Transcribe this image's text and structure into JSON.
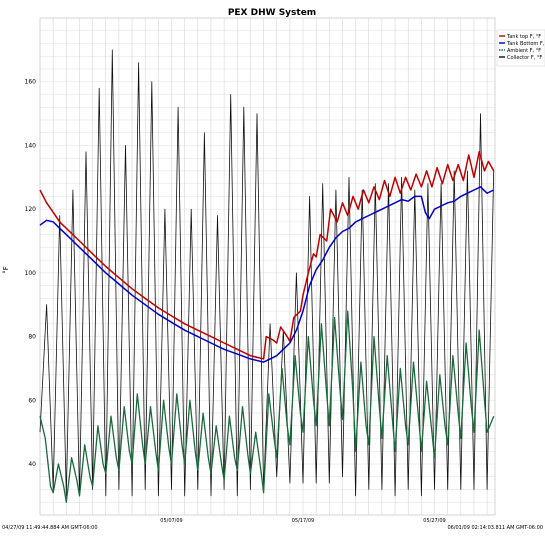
{
  "chart_data": {
    "type": "line",
    "title": "PEX DHW System",
    "xlabel": "",
    "ylabel": "°F",
    "ylim": [
      24,
      180
    ],
    "y_ticks": [
      40,
      60,
      80,
      100,
      120,
      140,
      160
    ],
    "y_tick_labels": [
      "40",
      "60",
      "80",
      "100",
      "120",
      "140",
      "160"
    ],
    "x_range": [
      "04/27/09 11:49:44.884 AM",
      "06/01/09 02:14:03.811 AM"
    ],
    "x_tick_labels": [
      {
        "label": "05/07/09",
        "day": 10
      },
      {
        "label": "05/17/09",
        "day": 20
      },
      {
        "label": "05/27/09",
        "day": 30
      }
    ],
    "x_start_label": "04/27/09 11:49:44.884 AM GMT-06:00",
    "x_end_label": "06/01/09 02:14:03.811 AM GMT-06:00",
    "grid": true,
    "legend_position": "top-right",
    "series": [
      {
        "name": "Tank top F, °F",
        "color": "#c00000",
        "points": [
          [
            0,
            126
          ],
          [
            0.5,
            122
          ],
          [
            1,
            119
          ],
          [
            1.5,
            116
          ],
          [
            2,
            114
          ],
          [
            3,
            110
          ],
          [
            4,
            106
          ],
          [
            5,
            102
          ],
          [
            6,
            98.5
          ],
          [
            7,
            95
          ],
          [
            8,
            92
          ],
          [
            9,
            89
          ],
          [
            10,
            86.5
          ],
          [
            11,
            84
          ],
          [
            12,
            82
          ],
          [
            13,
            80
          ],
          [
            14,
            78
          ],
          [
            15,
            76
          ],
          [
            16,
            74
          ],
          [
            17,
            73
          ],
          [
            17.2,
            80
          ],
          [
            17.7,
            79
          ],
          [
            18,
            78
          ],
          [
            18.3,
            83
          ],
          [
            18.8,
            80
          ],
          [
            19,
            78.5
          ],
          [
            19.3,
            86
          ],
          [
            19.8,
            88
          ],
          [
            20,
            93
          ],
          [
            20.4,
            100
          ],
          [
            20.8,
            106
          ],
          [
            21,
            105
          ],
          [
            21.3,
            112
          ],
          [
            21.8,
            110
          ],
          [
            22.1,
            120
          ],
          [
            22.6,
            116
          ],
          [
            23,
            122
          ],
          [
            23.4,
            118
          ],
          [
            23.8,
            124
          ],
          [
            24.2,
            120
          ],
          [
            24.6,
            126
          ],
          [
            25,
            122
          ],
          [
            25.4,
            127
          ],
          [
            25.8,
            123
          ],
          [
            26.2,
            129
          ],
          [
            26.6,
            124
          ],
          [
            27,
            130
          ],
          [
            27.4,
            125
          ],
          [
            27.8,
            130
          ],
          [
            28.2,
            126
          ],
          [
            28.6,
            131
          ],
          [
            29,
            127
          ],
          [
            29.4,
            132
          ],
          [
            29.8,
            127
          ],
          [
            30.2,
            133
          ],
          [
            30.6,
            128
          ],
          [
            31,
            134
          ],
          [
            31.4,
            129
          ],
          [
            31.8,
            134
          ],
          [
            32.2,
            129
          ],
          [
            32.6,
            137
          ],
          [
            33,
            130
          ],
          [
            33.4,
            138
          ],
          [
            33.8,
            132
          ],
          [
            34.1,
            135
          ],
          [
            34.5,
            132
          ]
        ]
      },
      {
        "name": "Tank Bottom F, °F",
        "color": "#0000cc",
        "points": [
          [
            0,
            115
          ],
          [
            0.5,
            116.5
          ],
          [
            1,
            116
          ],
          [
            1.5,
            114
          ],
          [
            2,
            112
          ],
          [
            3,
            108
          ],
          [
            4,
            104
          ],
          [
            5,
            100
          ],
          [
            6,
            96.5
          ],
          [
            7,
            93
          ],
          [
            8,
            90
          ],
          [
            9,
            87
          ],
          [
            10,
            84.5
          ],
          [
            11,
            82
          ],
          [
            12,
            80
          ],
          [
            13,
            78
          ],
          [
            14,
            76
          ],
          [
            15,
            74.5
          ],
          [
            16,
            73
          ],
          [
            17,
            72
          ],
          [
            17.5,
            73
          ],
          [
            18,
            74
          ],
          [
            18.5,
            76
          ],
          [
            19,
            78
          ],
          [
            19.5,
            82
          ],
          [
            20,
            88
          ],
          [
            20.5,
            96
          ],
          [
            21,
            101
          ],
          [
            21.5,
            104
          ],
          [
            22,
            108
          ],
          [
            22.5,
            111
          ],
          [
            23,
            113
          ],
          [
            23.5,
            114
          ],
          [
            24,
            116
          ],
          [
            24.5,
            117
          ],
          [
            25,
            118
          ],
          [
            25.5,
            119
          ],
          [
            26,
            120
          ],
          [
            26.5,
            121
          ],
          [
            27,
            122
          ],
          [
            27.5,
            123
          ],
          [
            28,
            122.5
          ],
          [
            28.5,
            124
          ],
          [
            29,
            124
          ],
          [
            29.3,
            119
          ],
          [
            29.6,
            117
          ],
          [
            30,
            120
          ],
          [
            30.5,
            121
          ],
          [
            31,
            122
          ],
          [
            31.5,
            122.5
          ],
          [
            32,
            124
          ],
          [
            32.5,
            125
          ],
          [
            33,
            126
          ],
          [
            33.5,
            127
          ],
          [
            34,
            125
          ],
          [
            34.5,
            126
          ]
        ]
      },
      {
        "name": "Ambient F, °F",
        "color": "#1a6b3c",
        "points": [
          [
            0,
            55
          ],
          [
            0.4,
            48
          ],
          [
            0.8,
            33
          ],
          [
            1,
            31
          ],
          [
            1.4,
            40
          ],
          [
            1.8,
            33
          ],
          [
            2,
            28
          ],
          [
            2.4,
            42
          ],
          [
            2.8,
            35
          ],
          [
            3,
            30
          ],
          [
            3.4,
            46
          ],
          [
            3.8,
            36
          ],
          [
            4,
            33
          ],
          [
            4.4,
            52
          ],
          [
            4.8,
            40
          ],
          [
            5,
            37
          ],
          [
            5.4,
            55
          ],
          [
            5.8,
            42
          ],
          [
            6,
            38
          ],
          [
            6.4,
            58
          ],
          [
            6.8,
            44
          ],
          [
            7,
            40
          ],
          [
            7.4,
            62
          ],
          [
            7.8,
            46
          ],
          [
            8,
            40
          ],
          [
            8.4,
            58
          ],
          [
            8.8,
            44
          ],
          [
            9,
            38
          ],
          [
            9.4,
            60
          ],
          [
            9.8,
            45
          ],
          [
            10,
            40
          ],
          [
            10.4,
            62
          ],
          [
            10.8,
            46
          ],
          [
            11,
            40
          ],
          [
            11.4,
            60
          ],
          [
            11.8,
            44
          ],
          [
            12,
            38
          ],
          [
            12.4,
            56
          ],
          [
            12.8,
            42
          ],
          [
            13,
            37
          ],
          [
            13.4,
            52
          ],
          [
            13.8,
            40
          ],
          [
            14,
            35
          ],
          [
            14.4,
            55
          ],
          [
            14.8,
            42
          ],
          [
            15,
            38
          ],
          [
            15.4,
            58
          ],
          [
            15.8,
            43
          ],
          [
            16,
            37
          ],
          [
            16.4,
            50
          ],
          [
            16.8,
            38
          ],
          [
            17,
            31
          ],
          [
            17.4,
            62
          ],
          [
            17.8,
            48
          ],
          [
            18,
            42
          ],
          [
            18.4,
            70
          ],
          [
            18.8,
            52
          ],
          [
            19,
            46
          ],
          [
            19.4,
            74
          ],
          [
            19.8,
            56
          ],
          [
            20,
            50
          ],
          [
            20.4,
            80
          ],
          [
            20.8,
            60
          ],
          [
            21,
            52
          ],
          [
            21.4,
            84
          ],
          [
            21.8,
            62
          ],
          [
            22,
            52
          ],
          [
            22.4,
            86
          ],
          [
            22.8,
            64
          ],
          [
            23,
            54
          ],
          [
            23.4,
            88
          ],
          [
            23.8,
            62
          ],
          [
            24,
            44
          ],
          [
            24.4,
            72
          ],
          [
            24.8,
            52
          ],
          [
            25,
            46
          ],
          [
            25.4,
            80
          ],
          [
            25.8,
            58
          ],
          [
            26,
            48
          ],
          [
            26.4,
            74
          ],
          [
            26.8,
            54
          ],
          [
            27,
            44
          ],
          [
            27.4,
            70
          ],
          [
            27.8,
            52
          ],
          [
            28,
            46
          ],
          [
            28.4,
            72
          ],
          [
            28.8,
            54
          ],
          [
            29,
            44
          ],
          [
            29.4,
            66
          ],
          [
            29.8,
            50
          ],
          [
            30,
            42
          ],
          [
            30.4,
            68
          ],
          [
            30.8,
            52
          ],
          [
            31,
            46
          ],
          [
            31.4,
            74
          ],
          [
            31.8,
            56
          ],
          [
            32,
            48
          ],
          [
            32.4,
            78
          ],
          [
            32.8,
            58
          ],
          [
            33,
            50
          ],
          [
            33.4,
            82
          ],
          [
            33.8,
            60
          ],
          [
            34,
            50
          ],
          [
            34.5,
            55
          ]
        ]
      },
      {
        "name": "Collector F, °F",
        "color": "#111111",
        "points": [
          [
            0,
            50
          ],
          [
            0.5,
            90
          ],
          [
            1,
            32
          ],
          [
            1.5,
            118
          ],
          [
            2,
            30
          ],
          [
            2.5,
            126
          ],
          [
            3,
            30
          ],
          [
            3.5,
            138
          ],
          [
            4,
            32
          ],
          [
            4.5,
            158
          ],
          [
            5,
            30
          ],
          [
            5.5,
            170
          ],
          [
            6,
            32
          ],
          [
            6.5,
            140
          ],
          [
            7,
            30
          ],
          [
            7.5,
            166
          ],
          [
            8,
            32
          ],
          [
            8.5,
            160
          ],
          [
            9,
            30
          ],
          [
            9.5,
            120
          ],
          [
            10,
            32
          ],
          [
            10.5,
            152
          ],
          [
            11,
            30
          ],
          [
            11.5,
            120
          ],
          [
            12,
            32
          ],
          [
            12.5,
            144
          ],
          [
            13,
            30
          ],
          [
            13.5,
            118
          ],
          [
            14,
            32
          ],
          [
            14.5,
            156
          ],
          [
            15,
            30
          ],
          [
            15.5,
            152
          ],
          [
            16,
            32
          ],
          [
            16.5,
            150
          ],
          [
            17,
            32
          ],
          [
            17.5,
            84
          ],
          [
            18,
            36
          ],
          [
            18.5,
            82
          ],
          [
            19,
            34
          ],
          [
            19.5,
            100
          ],
          [
            20,
            34
          ],
          [
            20.5,
            124
          ],
          [
            21,
            34
          ],
          [
            21.5,
            128
          ],
          [
            22,
            34
          ],
          [
            22.5,
            126
          ],
          [
            23,
            36
          ],
          [
            23.5,
            130
          ],
          [
            24,
            30
          ],
          [
            24.5,
            126
          ],
          [
            25,
            32
          ],
          [
            25.5,
            128
          ],
          [
            26,
            32
          ],
          [
            26.5,
            128
          ],
          [
            27,
            30
          ],
          [
            27.5,
            130
          ],
          [
            28,
            32
          ],
          [
            28.5,
            126
          ],
          [
            29,
            30
          ],
          [
            29.5,
            128
          ],
          [
            30,
            32
          ],
          [
            30.5,
            128
          ],
          [
            31,
            32
          ],
          [
            31.5,
            132
          ],
          [
            32,
            32
          ],
          [
            32.5,
            132
          ],
          [
            33,
            32
          ],
          [
            33.5,
            150
          ],
          [
            34,
            32
          ],
          [
            34.5,
            132
          ]
        ]
      }
    ]
  }
}
